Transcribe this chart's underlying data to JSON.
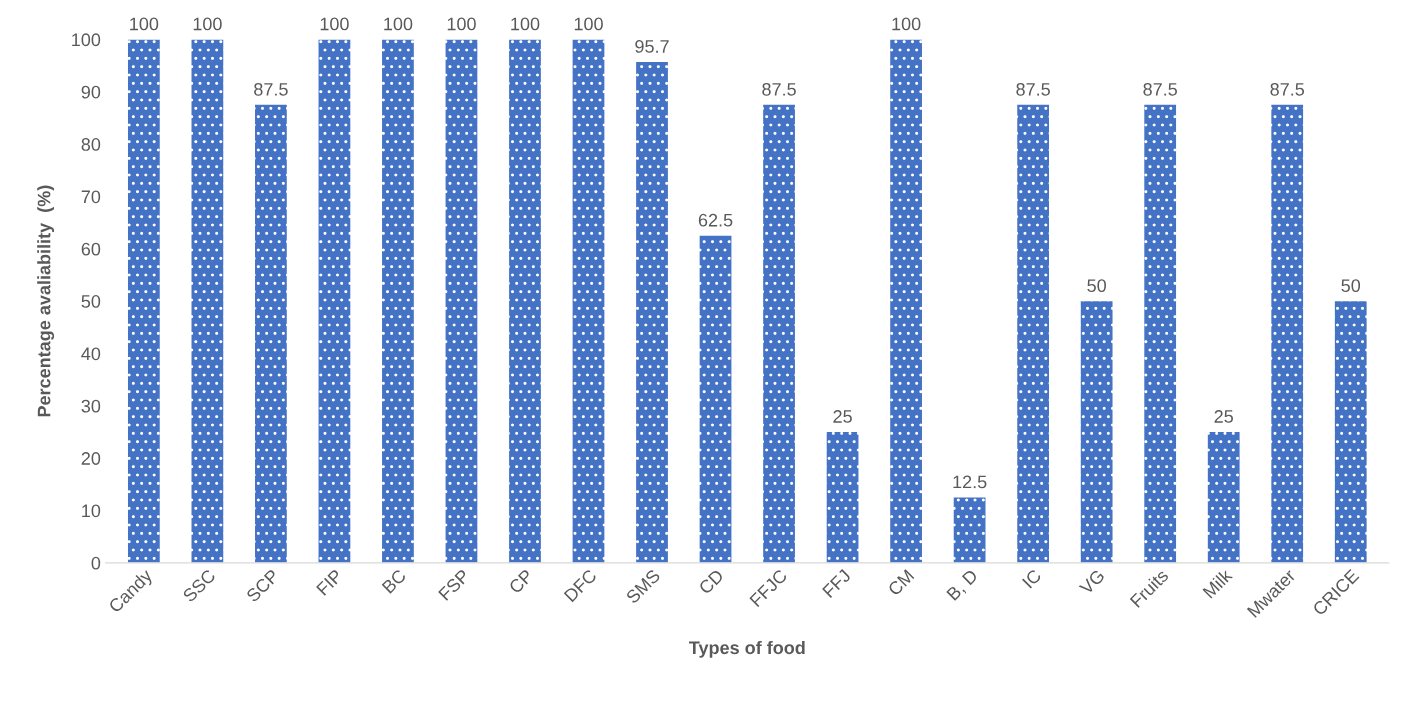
{
  "chart_data": {
    "type": "bar",
    "xlabel": "Types of food",
    "ylabel": "Percentage avaliability  (%)",
    "categories": [
      "Candy",
      "SSC",
      "SCP",
      "FIP",
      "BC",
      "FSP",
      "CP",
      "DFC",
      "SMS",
      "CD",
      "FFJC",
      "FFJ",
      "CM",
      "B, D",
      "IC",
      "VG",
      "Fruits",
      "Milk",
      "Mwater",
      "CRICE"
    ],
    "values": [
      100,
      100,
      87.5,
      100,
      100,
      100,
      100,
      100,
      95.7,
      62.5,
      87.5,
      25,
      100,
      12.5,
      87.5,
      50,
      87.5,
      25,
      87.5,
      50
    ],
    "color": "#4472c4",
    "ylim": [
      0,
      100
    ],
    "yticks": [
      0,
      10,
      20,
      30,
      40,
      50,
      60,
      70,
      80,
      90,
      100
    ],
    "data_labels": true,
    "grid": false,
    "legend": false
  }
}
